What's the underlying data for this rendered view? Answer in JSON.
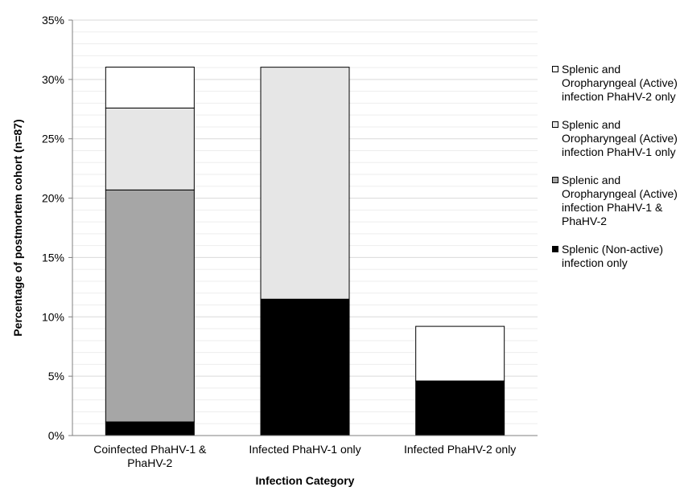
{
  "chart_data": {
    "type": "bar",
    "stacked": true,
    "title": "",
    "xlabel": "Infection Category",
    "ylabel": "Percentage of postmortem cohort (n=87)",
    "ylim": [
      0,
      35
    ],
    "yticks": [
      "0%",
      "5%",
      "10%",
      "15%",
      "20%",
      "25%",
      "30%",
      "35%"
    ],
    "grid": true,
    "legend_position": "right",
    "categories": [
      [
        "Coinfected PhaHV-1 &",
        "PhaHV-2"
      ],
      [
        "Infected PhaHV-1 only"
      ],
      [
        "Infected PhaHV-2 only"
      ]
    ],
    "series": [
      {
        "name": "Splenic (Non-active) infection only",
        "color": "#000000",
        "values": [
          1.15,
          11.49,
          4.6
        ]
      },
      {
        "name": "Splenic and Oropharyngeal (Active) infection PhaHV-1 & PhaHV-2",
        "color": "#a6a6a6",
        "values": [
          19.54,
          0,
          0
        ]
      },
      {
        "name": "Splenic and Oropharyngeal (Active) infection PhaHV-1 only",
        "color": "#e6e6e6",
        "values": [
          6.9,
          19.54,
          0
        ]
      },
      {
        "name": "Splenic and Oropharyngeal (Active) infection PhaHV-2 only",
        "color": "#ffffff",
        "values": [
          3.45,
          0,
          4.6
        ]
      }
    ]
  },
  "legend": {
    "items": [
      {
        "lines": [
          "Splenic and",
          "Oropharyngeal (Active)",
          "infection PhaHV-2 only"
        ],
        "color": "#ffffff"
      },
      {
        "lines": [
          "Splenic and",
          "Oropharyngeal (Active)",
          "infection PhaHV-1 only"
        ],
        "color": "#e6e6e6"
      },
      {
        "lines": [
          "Splenic and",
          "Oropharyngeal (Active)",
          "infection PhaHV-1 &",
          "PhaHV-2"
        ],
        "color": "#a6a6a6"
      },
      {
        "lines": [
          "Splenic (Non-active)",
          "infection only"
        ],
        "color": "#000000"
      }
    ]
  }
}
